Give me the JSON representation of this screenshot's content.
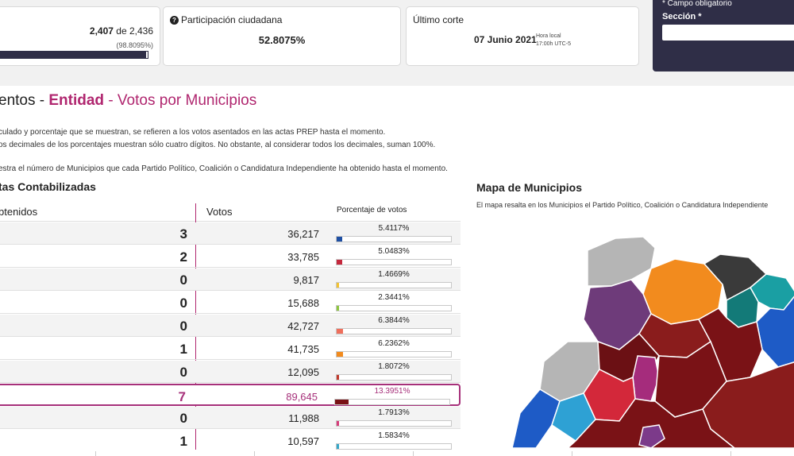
{
  "actas": {
    "count": "2,407",
    "de": "de",
    "total": "2,436",
    "percent": "(98.8095%)",
    "progress": 0.988
  },
  "participacion": {
    "title": "Participación ciudadana",
    "value": "52.8075%"
  },
  "corte": {
    "title": "Último corte",
    "date": "07 Junio 2021",
    "hora_label": "Hora local",
    "hora_value": "17:00h UTC-5"
  },
  "panel": {
    "note": "* Campo obligatorio",
    "label": "Sección *"
  },
  "page": {
    "title_prefix": "entos - ",
    "title_entity": "Entidad",
    "title_suffix": " - Votos por Municipios"
  },
  "notes": [
    "culado y porcentaje que se muestran, se refieren a los votos asentados en las actas PREP hasta el momento.",
    "os decimales de los porcentajes muestran sólo cuatro dígitos. No obstante, al considerar todos los decimales, suman 100%.",
    "estra el número de Municipios que cada Partido Político, Coalición o Candidatura Independiente ha obtenido hasta el momento."
  ],
  "table": {
    "section_title": "tas Contabilizadas",
    "headers": {
      "obtenidos": "btenidos",
      "votos": "Votos",
      "porcentaje": "Porcentaje de votos"
    },
    "rows": [
      {
        "count": "3",
        "votes": "36,217",
        "pct_text": "5.4117%",
        "pct": 5.4117,
        "color": "#1e4fa3"
      },
      {
        "count": "2",
        "votes": "33,785",
        "pct_text": "5.0483%",
        "pct": 5.0483,
        "color": "#c5283d"
      },
      {
        "count": "0",
        "votes": "9,817",
        "pct_text": "1.4669%",
        "pct": 1.4669,
        "color": "#f2c230"
      },
      {
        "count": "0",
        "votes": "15,688",
        "pct_text": "2.3441%",
        "pct": 2.3441,
        "color": "#8dc63f"
      },
      {
        "count": "0",
        "votes": "42,727",
        "pct_text": "6.3844%",
        "pct": 6.3844,
        "color": "#ef6f5c"
      },
      {
        "count": "1",
        "votes": "41,735",
        "pct_text": "6.2362%",
        "pct": 6.2362,
        "color": "#f28b1e"
      },
      {
        "count": "0",
        "votes": "12,095",
        "pct_text": "1.8072%",
        "pct": 1.8072,
        "color": "#c0392b"
      },
      {
        "count": "7",
        "votes": "89,645",
        "pct_text": "13.3951%",
        "pct": 13.3951,
        "color": "#7a1216",
        "highlight": true
      },
      {
        "count": "0",
        "votes": "11,988",
        "pct_text": "1.7913%",
        "pct": 1.7913,
        "color": "#d63d7a"
      },
      {
        "count": "1",
        "votes": "10,597",
        "pct_text": "1.5834%",
        "pct": 1.5834,
        "color": "#36a7c8"
      }
    ]
  },
  "map": {
    "title": "Mapa de Municipios",
    "description": "El mapa resalta en los Municipios el Partido Político, Coalición o Candidatura Independiente"
  }
}
